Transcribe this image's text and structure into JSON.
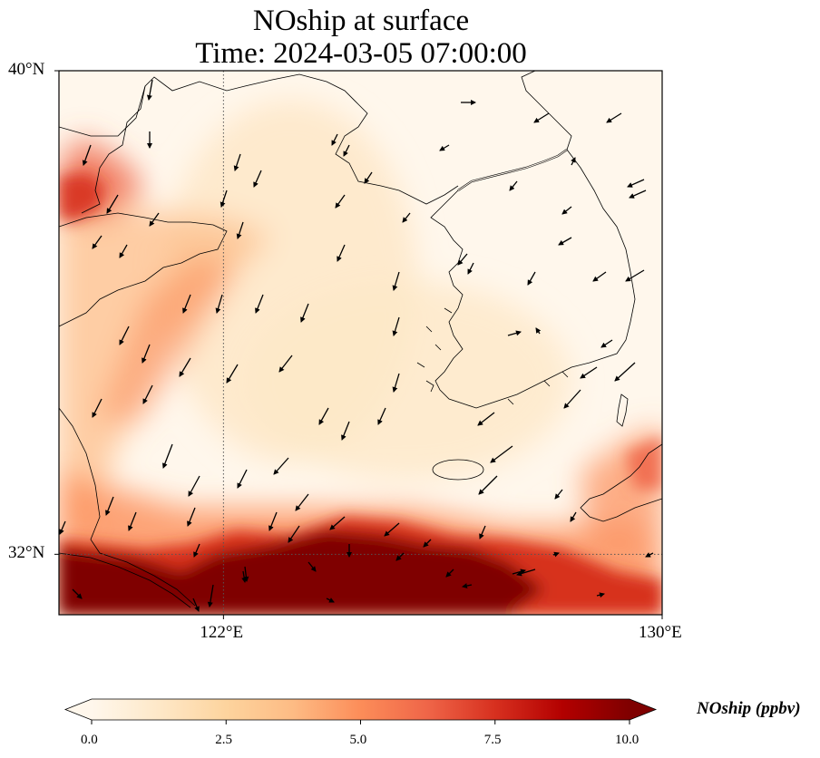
{
  "title": {
    "line1": "NOship at surface",
    "line2": "Time: 2024-03-05 07:00:00"
  },
  "axes": {
    "lon_range": [
      119,
      130
    ],
    "lat_range": [
      31,
      40
    ],
    "xticks": [
      {
        "value": 122,
        "label": "122°E"
      },
      {
        "value": 130,
        "label": "130°E"
      }
    ],
    "yticks": [
      {
        "value": 40,
        "label": "40°N"
      },
      {
        "value": 32,
        "label": "32°N"
      }
    ],
    "gridlines": "dotted",
    "gridline_values": {
      "lon": [
        122
      ],
      "lat": [
        32
      ]
    }
  },
  "colorbar": {
    "label": "NOship (ppbv)",
    "colormap": "OrRd",
    "vmin": 0,
    "vmax": 10,
    "extend": "both",
    "ticks": [
      "0.0",
      "2.5",
      "5.0",
      "7.5",
      "10.0"
    ],
    "stops": [
      "#fff7ec",
      "#fee8c8",
      "#fdd49e",
      "#fdbb84",
      "#fc8d59",
      "#ef6548",
      "#d7301f",
      "#b30000",
      "#7f0000"
    ]
  },
  "map_data": {
    "field": "NOship",
    "units": "ppbv",
    "level": "surface",
    "vector_field": "wind"
  }
}
